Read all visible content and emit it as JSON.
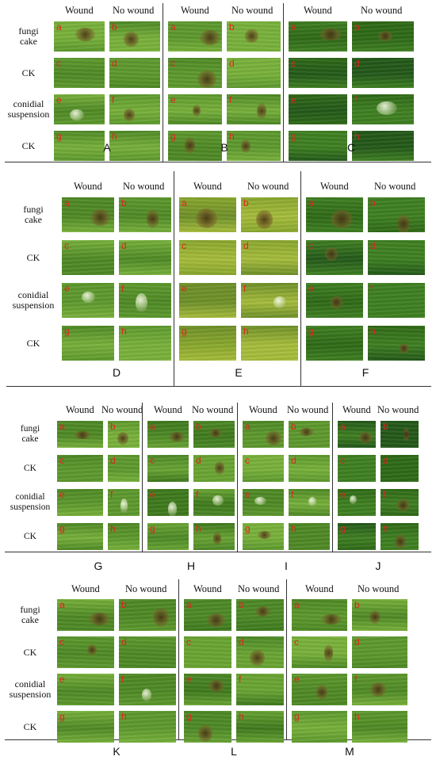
{
  "figure": {
    "column_headers": {
      "wound": "Wound",
      "no_wound": "No wound"
    },
    "row_labels": [
      "fungi\ncake",
      "CK",
      "conidial\nsuspension",
      "CK"
    ],
    "panel_tags": [
      "a",
      "b",
      "c",
      "d",
      "e",
      "f",
      "g",
      "h"
    ],
    "panels": [
      {
        "letter": "A",
        "tone": "light"
      },
      {
        "letter": "B",
        "tone": "light"
      },
      {
        "letter": "C",
        "tone": "dark"
      },
      {
        "letter": "D",
        "tone": "light"
      },
      {
        "letter": "E",
        "tone": "yellow"
      },
      {
        "letter": "F",
        "tone": "dark"
      },
      {
        "letter": "G",
        "tone": "light"
      },
      {
        "letter": "H",
        "tone": "mid"
      },
      {
        "letter": "I",
        "tone": "light"
      },
      {
        "letter": "J",
        "tone": "dark"
      },
      {
        "letter": "K",
        "tone": "light"
      },
      {
        "letter": "L",
        "tone": "mid"
      },
      {
        "letter": "M",
        "tone": "light"
      }
    ]
  }
}
